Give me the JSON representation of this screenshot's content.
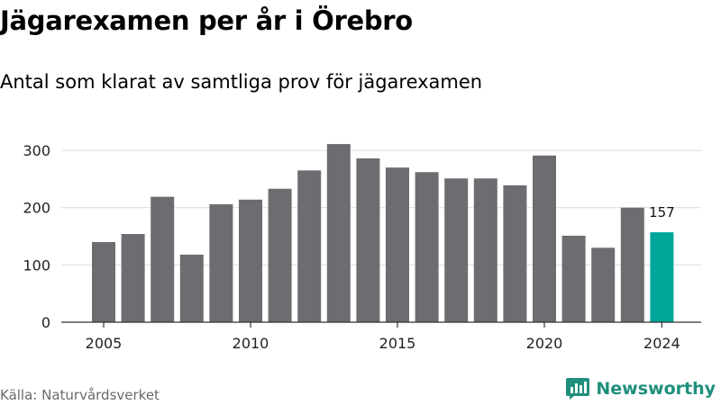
{
  "title": "Jägarexamen per år i Örebro",
  "subtitle": "Antal som klarat av samtliga prov för jägarexamen",
  "source": "Källa: Naturvårdsverket",
  "brand": {
    "name": "Newsworthy",
    "icon": "newsworthy-logo-icon"
  },
  "colors": {
    "bar": "#6d6c71",
    "highlight": "#00a69a",
    "grid": "#dcdcdc",
    "axis": "#333333",
    "brand": "#1f8f7d"
  },
  "chart_data": {
    "type": "bar",
    "x": [
      2005,
      2006,
      2007,
      2008,
      2009,
      2010,
      2011,
      2012,
      2013,
      2014,
      2015,
      2016,
      2017,
      2018,
      2019,
      2020,
      2021,
      2022,
      2023,
      2024
    ],
    "values": [
      140,
      154,
      219,
      118,
      206,
      214,
      233,
      265,
      311,
      286,
      270,
      262,
      251,
      251,
      239,
      291,
      151,
      130,
      200,
      157
    ],
    "highlight_index": 19,
    "data_labels": [
      {
        "index": 19,
        "text": "157"
      }
    ],
    "x_tick_labels": [
      "2005",
      "2010",
      "2015",
      "2020",
      "2024"
    ],
    "y_ticks": [
      0,
      100,
      200,
      300
    ],
    "ylim": [
      0,
      330
    ],
    "xlabel": "",
    "ylabel": "",
    "grid": "horizontal",
    "legend": "none"
  }
}
